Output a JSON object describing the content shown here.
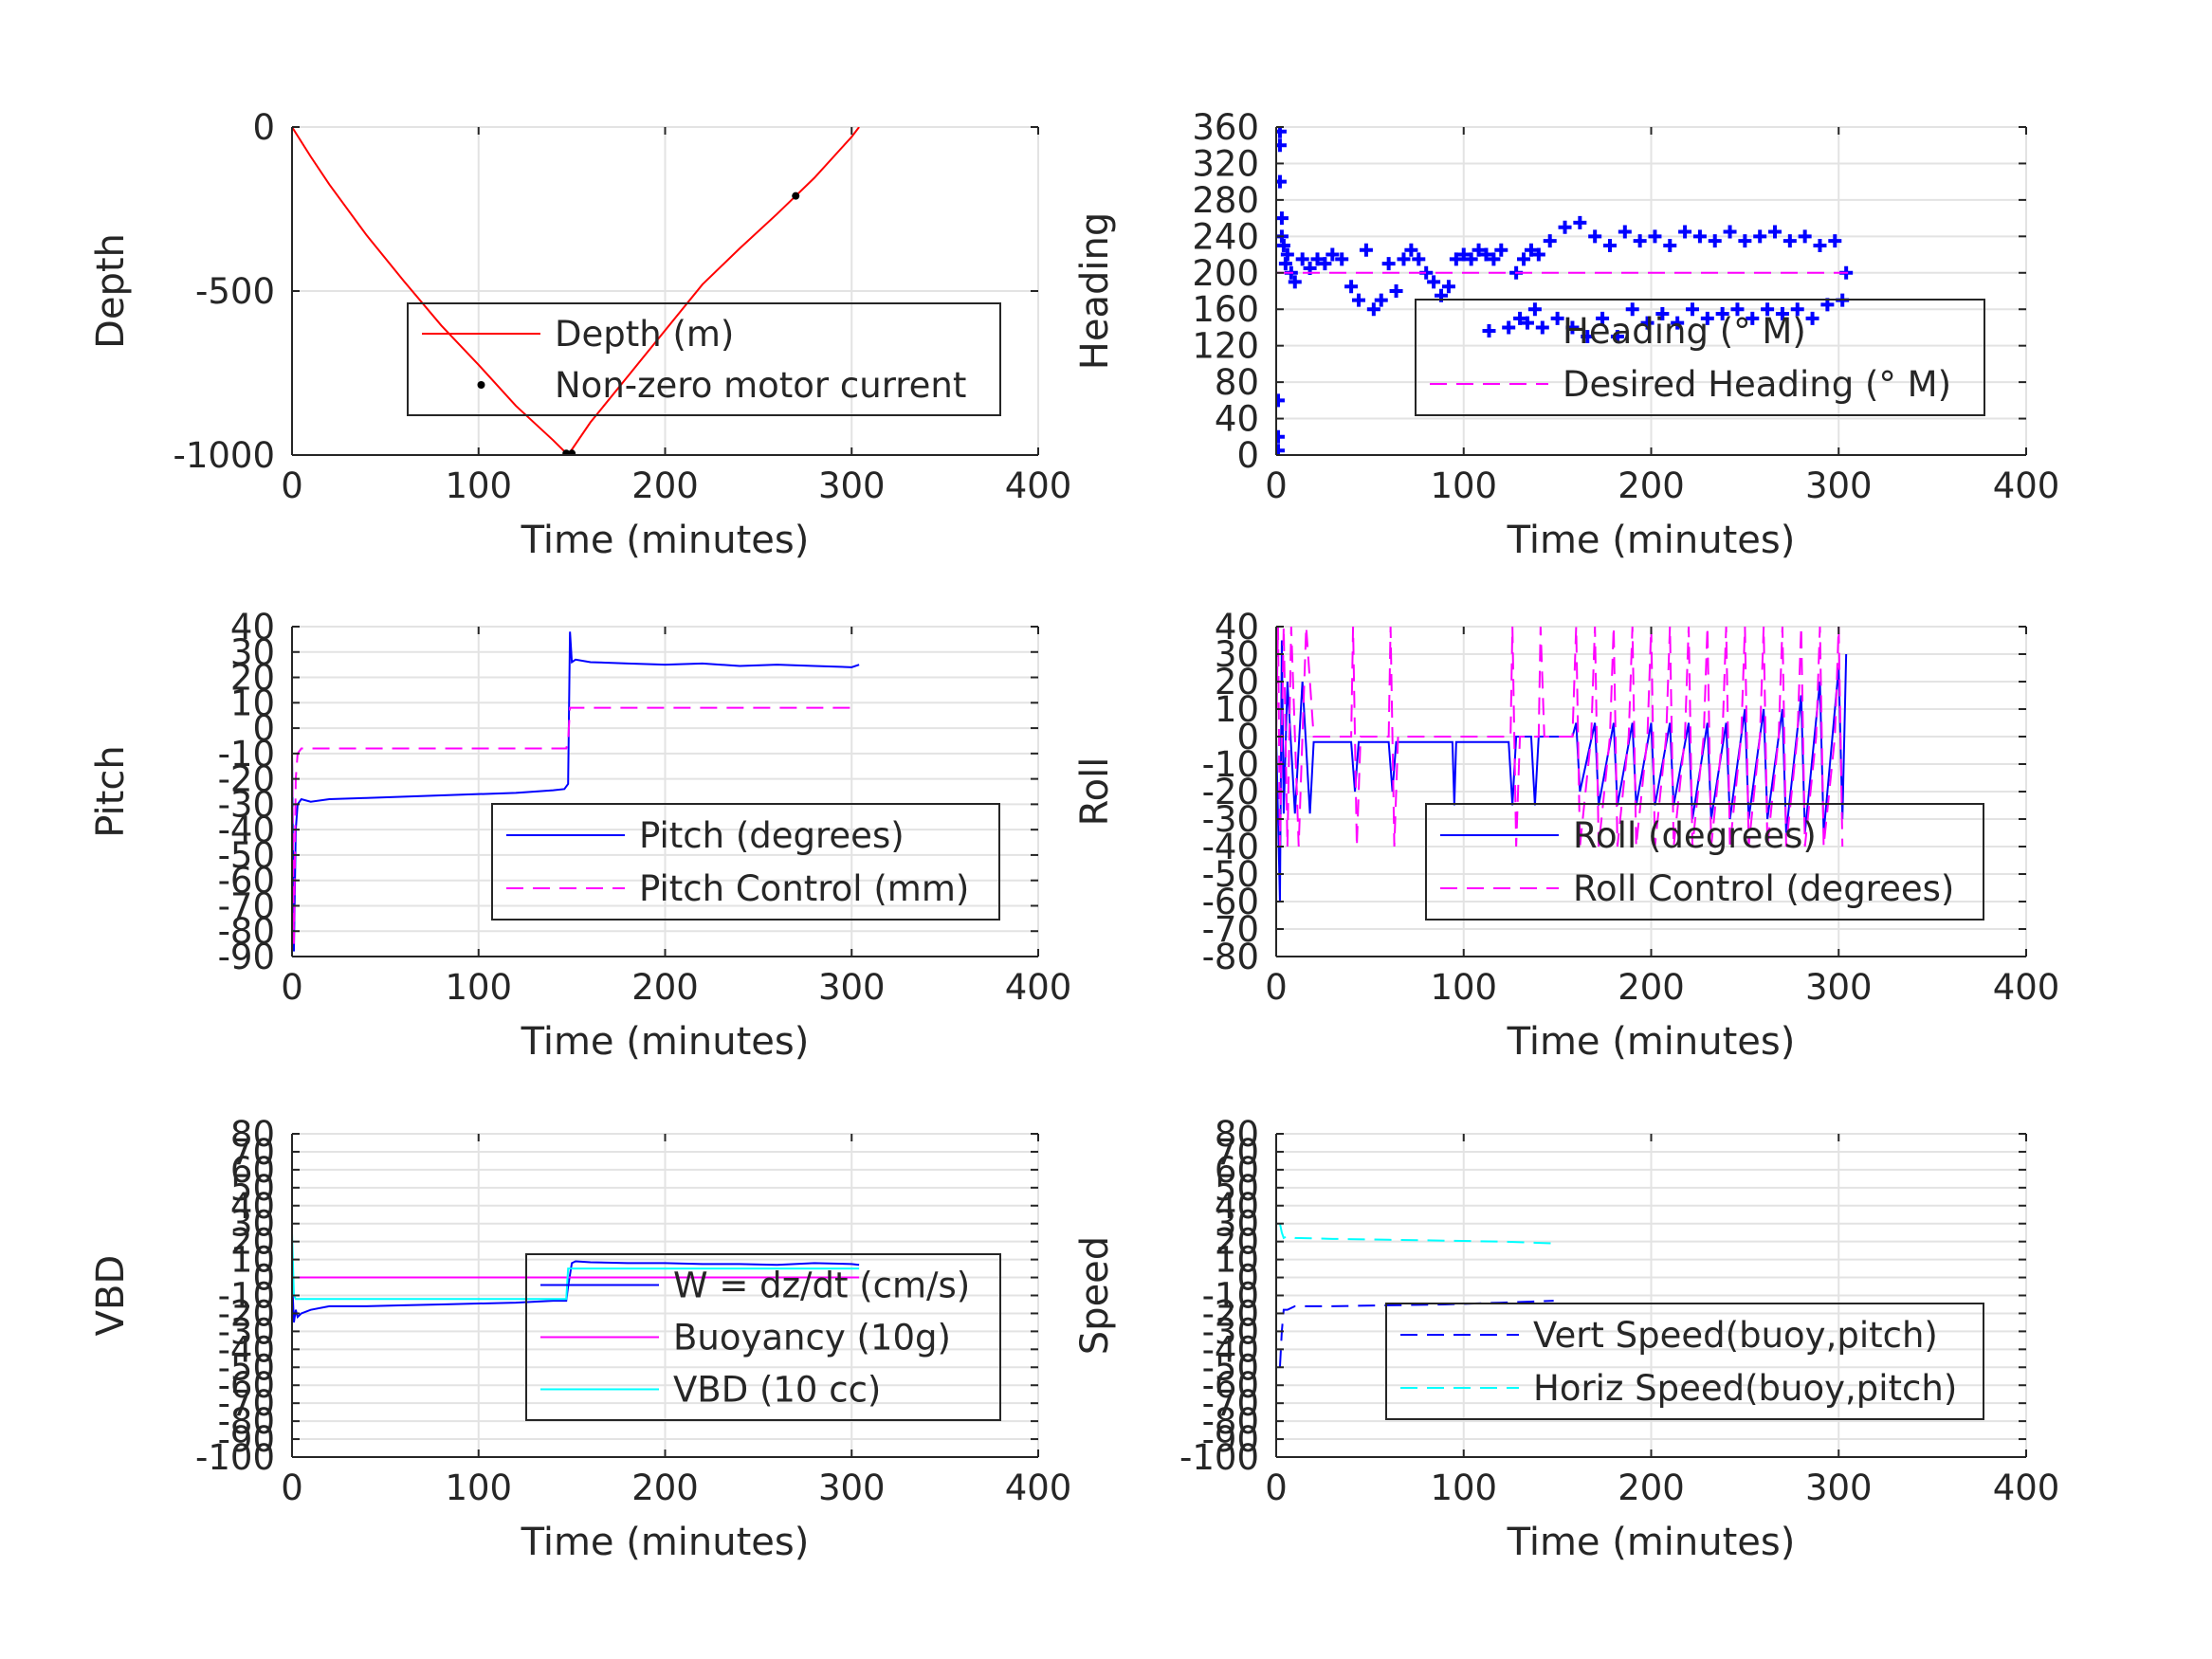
{
  "chart_data": [
    {
      "type": "line",
      "xlabel": "Time (minutes)",
      "ylabel": "Depth",
      "xlim": [
        0,
        400
      ],
      "ylim": [
        -1000,
        0
      ],
      "xticks": [
        0,
        100,
        200,
        300,
        400
      ],
      "yticks": [
        -1000,
        -500,
        0
      ],
      "grid": true,
      "legend_placement": "center-right",
      "series": [
        {
          "name": "Depth (m)",
          "color": "#ff0000",
          "style": "solid",
          "marker": "none",
          "x": [
            0,
            10,
            20,
            40,
            60,
            80,
            100,
            120,
            140,
            148,
            160,
            180,
            200,
            220,
            240,
            260,
            270,
            280,
            300,
            304
          ],
          "y": [
            0,
            -90,
            -175,
            -330,
            -470,
            -605,
            -725,
            -850,
            -955,
            -1000,
            -900,
            -760,
            -620,
            -480,
            -370,
            -265,
            -210,
            -155,
            -30,
            0
          ]
        },
        {
          "name": "Non-zero motor current",
          "color": "#000000",
          "style": "none",
          "marker": "dot",
          "x": [
            147,
            148,
            149,
            150,
            270
          ],
          "y": [
            -995,
            -1000,
            -1000,
            -995,
            -210
          ]
        }
      ]
    },
    {
      "type": "scatter",
      "xlabel": "Time (minutes)",
      "ylabel": "Heading",
      "xlim": [
        0,
        400
      ],
      "ylim": [
        0,
        360
      ],
      "xticks": [
        0,
        100,
        200,
        300,
        400
      ],
      "yticks": [
        0,
        40,
        80,
        120,
        160,
        200,
        240,
        280,
        320,
        360
      ],
      "grid": true,
      "legend_placement": "center-right",
      "series": [
        {
          "name": "Heading (° M)",
          "color": "#0000ff",
          "style": "none",
          "marker": "plus",
          "x": [
            1,
            1,
            1,
            2,
            2,
            2,
            3,
            3,
            4,
            5,
            6,
            8,
            10,
            14,
            18,
            22,
            26,
            30,
            35,
            40,
            44,
            48,
            52,
            56,
            60,
            64,
            68,
            72,
            76,
            80,
            84,
            88,
            92,
            96,
            100,
            104,
            108,
            112,
            116,
            120,
            124,
            128,
            130,
            132,
            134,
            136,
            138,
            140,
            142,
            146,
            150,
            154,
            158,
            162,
            166,
            170,
            174,
            178,
            182,
            186,
            190,
            194,
            198,
            202,
            206,
            210,
            214,
            218,
            222,
            226,
            230,
            234,
            238,
            242,
            246,
            250,
            254,
            258,
            262,
            266,
            270,
            274,
            278,
            282,
            286,
            290,
            294,
            298,
            302,
            304
          ],
          "y": [
            5,
            20,
            60,
            355,
            340,
            300,
            260,
            240,
            230,
            210,
            220,
            200,
            190,
            215,
            205,
            215,
            210,
            220,
            215,
            185,
            170,
            225,
            160,
            170,
            210,
            180,
            215,
            225,
            215,
            200,
            190,
            175,
            185,
            215,
            220,
            215,
            225,
            220,
            215,
            225,
            140,
            200,
            150,
            215,
            145,
            225,
            160,
            220,
            140,
            235,
            150,
            250,
            140,
            255,
            130,
            240,
            150,
            230,
            130,
            245,
            160,
            235,
            145,
            240,
            155,
            230,
            145,
            245,
            160,
            240,
            150,
            235,
            155,
            245,
            160,
            235,
            150,
            240,
            160,
            245,
            155,
            235,
            160,
            240,
            150,
            230,
            165,
            235,
            170,
            200
          ]
        },
        {
          "name": "Desired Heading (° M)",
          "color": "#ff00ff",
          "style": "dash",
          "marker": "none",
          "x": [
            0,
            305
          ],
          "y": [
            200,
            200
          ]
        }
      ]
    },
    {
      "type": "line",
      "xlabel": "Time (minutes)",
      "ylabel": "Pitch",
      "xlim": [
        0,
        400
      ],
      "ylim": [
        -90,
        40
      ],
      "xticks": [
        0,
        100,
        200,
        300,
        400
      ],
      "yticks": [
        -90,
        -80,
        -70,
        -60,
        -50,
        -40,
        -30,
        -20,
        -10,
        0,
        10,
        20,
        30,
        40
      ],
      "grid": true,
      "legend_placement": "center-right",
      "series": [
        {
          "name": "Pitch (degrees)",
          "color": "#0000ff",
          "style": "solid",
          "marker": "none",
          "x": [
            0,
            1,
            2,
            3,
            5,
            10,
            20,
            40,
            60,
            80,
            100,
            120,
            140,
            146,
            148,
            149,
            150,
            152,
            160,
            180,
            200,
            220,
            240,
            260,
            280,
            300,
            304
          ],
          "y": [
            -10,
            -88,
            -40,
            -30,
            -28,
            -29,
            -28,
            -27.5,
            -27,
            -26.5,
            -26,
            -25.5,
            -24.5,
            -24,
            -22,
            38,
            26,
            27,
            26,
            25.5,
            25,
            25.5,
            24.5,
            25,
            24.5,
            24,
            25
          ]
        },
        {
          "name": "Pitch Control (mm)",
          "color": "#ff00ff",
          "style": "dash",
          "marker": "none",
          "x": [
            0,
            1,
            2,
            3,
            5,
            145,
            147,
            148,
            149,
            304
          ],
          "y": [
            -10,
            -85,
            -20,
            -10,
            -8,
            -8,
            -8,
            -5,
            8,
            8
          ]
        }
      ]
    },
    {
      "type": "line",
      "xlabel": "Time (minutes)",
      "ylabel": "Roll",
      "xlim": [
        0,
        400
      ],
      "ylim": [
        -80,
        40
      ],
      "xticks": [
        0,
        100,
        200,
        300,
        400
      ],
      "yticks": [
        -80,
        -70,
        -60,
        -50,
        -40,
        -30,
        -20,
        -10,
        0,
        10,
        20,
        30,
        40
      ],
      "grid": true,
      "legend_placement": "center-right",
      "series": [
        {
          "name": "Roll (degrees)",
          "color": "#0000ff",
          "style": "solid",
          "marker": "none",
          "x": [
            0,
            2,
            3,
            4,
            6,
            10,
            14,
            18,
            20,
            40,
            42,
            44,
            60,
            62,
            64,
            94,
            95,
            96,
            124,
            126,
            128,
            136,
            138,
            140,
            150,
            158,
            160,
            162,
            170,
            172,
            180,
            182,
            190,
            192,
            200,
            202,
            210,
            212,
            220,
            222,
            230,
            232,
            240,
            242,
            250,
            252,
            260,
            262,
            270,
            272,
            280,
            282,
            290,
            292,
            300,
            302,
            304
          ],
          "y": [
            0,
            -60,
            35,
            -28,
            20,
            -28,
            20,
            -28,
            -2,
            -2,
            -20,
            -2,
            -2,
            -20,
            -2,
            -2,
            -25,
            -2,
            -2,
            -25,
            0,
            0,
            -25,
            0,
            0,
            0,
            5,
            -20,
            5,
            -25,
            5,
            -25,
            5,
            -25,
            5,
            -25,
            5,
            -25,
            5,
            -30,
            5,
            -30,
            5,
            -30,
            10,
            -30,
            10,
            -30,
            10,
            -35,
            15,
            -35,
            20,
            -35,
            25,
            -30,
            30
          ]
        },
        {
          "name": "Roll Control (degrees)",
          "color": "#ff00ff",
          "style": "dash",
          "marker": "none",
          "x": [
            0,
            1,
            2,
            4,
            6,
            8,
            12,
            16,
            20,
            40,
            41,
            43,
            45,
            60,
            61,
            63,
            65,
            125,
            126,
            128,
            130,
            140,
            141,
            143,
            150,
            158,
            160,
            162,
            168,
            170,
            172,
            178,
            180,
            182,
            188,
            190,
            192,
            198,
            200,
            202,
            208,
            210,
            212,
            218,
            220,
            222,
            228,
            230,
            232,
            238,
            240,
            242,
            248,
            250,
            252,
            258,
            260,
            262,
            268,
            270,
            272,
            278,
            280,
            282,
            288,
            290,
            292,
            298,
            300,
            302
          ],
          "y": [
            0,
            40,
            -40,
            40,
            -40,
            40,
            -40,
            40,
            0,
            0,
            40,
            -40,
            0,
            0,
            40,
            -40,
            0,
            0,
            40,
            -40,
            0,
            0,
            40,
            0,
            0,
            0,
            40,
            -40,
            0,
            40,
            -40,
            0,
            40,
            -40,
            0,
            40,
            -40,
            0,
            40,
            -40,
            0,
            40,
            -40,
            0,
            40,
            -40,
            0,
            40,
            -40,
            0,
            40,
            -40,
            0,
            40,
            -40,
            0,
            40,
            -40,
            0,
            40,
            -40,
            0,
            40,
            -40,
            0,
            40,
            -40,
            0,
            40,
            -40
          ]
        }
      ]
    },
    {
      "type": "line",
      "xlabel": "Time (minutes)",
      "ylabel": "VBD",
      "xlim": [
        0,
        400
      ],
      "ylim": [
        -100,
        80
      ],
      "xticks": [
        0,
        100,
        200,
        300,
        400
      ],
      "yticks": [
        -100,
        -90,
        -80,
        -70,
        -60,
        -50,
        -40,
        -30,
        -20,
        -10,
        0,
        10,
        20,
        30,
        40,
        50,
        60,
        70,
        80
      ],
      "grid": true,
      "legend_placement": "center-right",
      "series": [
        {
          "name": "W = dz/dt (cm/s)",
          "color": "#0000ff",
          "style": "solid",
          "marker": "none",
          "x": [
            0,
            1,
            2,
            3,
            5,
            10,
            20,
            40,
            60,
            80,
            100,
            120,
            140,
            147,
            148,
            150,
            152,
            160,
            180,
            200,
            220,
            240,
            260,
            280,
            300,
            304
          ],
          "y": [
            0,
            -25,
            -18,
            -22,
            -20,
            -18,
            -16,
            -16,
            -15.5,
            -15,
            -14.5,
            -14,
            -13,
            -13,
            -5,
            8,
            9,
            8.5,
            8,
            8,
            7.5,
            7.5,
            7,
            8,
            7.5,
            7
          ]
        },
        {
          "name": "Buoyancy (10g)",
          "color": "#ff00ff",
          "style": "solid",
          "marker": "none",
          "x": [
            0,
            3,
            304
          ],
          "y": [
            0,
            0,
            0
          ]
        },
        {
          "name": "VBD (10 cc)",
          "color": "#00ffff",
          "style": "solid",
          "marker": "none",
          "x": [
            0,
            1,
            2,
            3,
            147,
            148,
            304
          ],
          "y": [
            25,
            -10,
            -12,
            -12,
            -12,
            5,
            5
          ]
        }
      ]
    },
    {
      "type": "line",
      "xlabel": "Time (minutes)",
      "ylabel": "Speed",
      "xlim": [
        0,
        400
      ],
      "ylim": [
        -100,
        80
      ],
      "xticks": [
        0,
        100,
        200,
        300,
        400
      ],
      "yticks": [
        -100,
        -90,
        -80,
        -70,
        -60,
        -50,
        -40,
        -30,
        -20,
        -10,
        0,
        10,
        20,
        30,
        40,
        50,
        60,
        70,
        80
      ],
      "grid": true,
      "legend_placement": "center-right",
      "series": [
        {
          "name": "Vert Speed(buoy,pitch)",
          "color": "#0000ff",
          "style": "dash",
          "marker": "none",
          "x": [
            2,
            3,
            4,
            6,
            10,
            30,
            60,
            90,
            120,
            148
          ],
          "y": [
            -50,
            -30,
            -18,
            -18,
            -16,
            -16,
            -15.5,
            -15,
            -14,
            -13
          ]
        },
        {
          "name": "Horiz Speed(buoy,pitch)",
          "color": "#00ffff",
          "style": "dash",
          "marker": "none",
          "x": [
            2,
            3,
            4,
            6,
            10,
            30,
            60,
            90,
            120,
            148
          ],
          "y": [
            30,
            25,
            22,
            23,
            22,
            21.5,
            21,
            20.5,
            20,
            19
          ]
        }
      ]
    }
  ]
}
